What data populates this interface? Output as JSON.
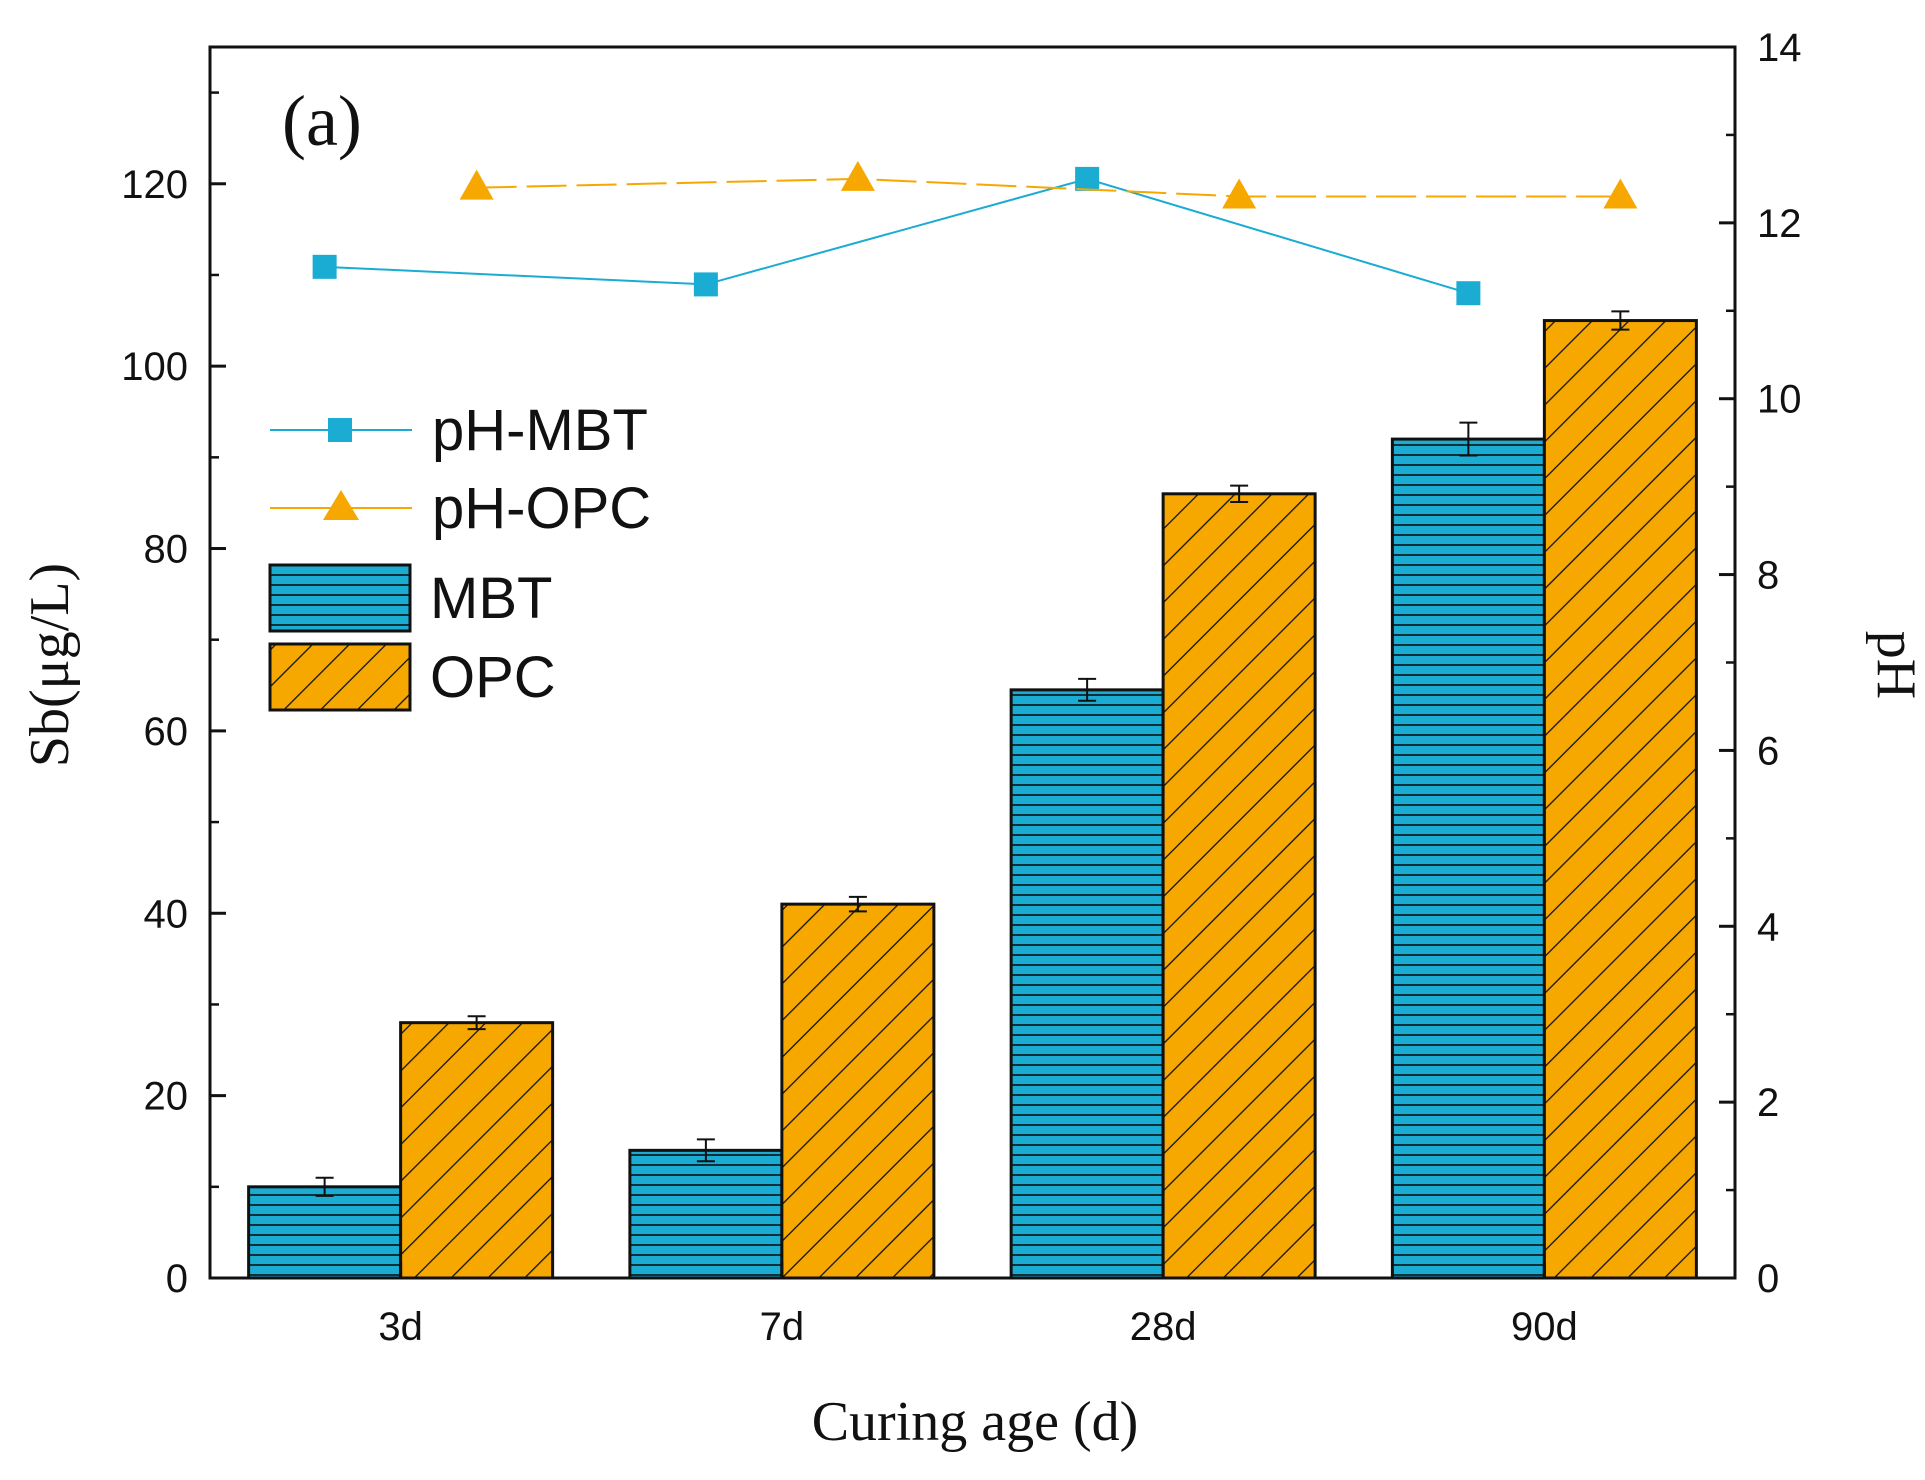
{
  "colors": {
    "mbt": "#1AACD2",
    "opc": "#F7A800",
    "axis": "#111111"
  },
  "chart_data": {
    "type": "bar",
    "panel_label": "(a)",
    "categories": [
      "3d",
      "7d",
      "28d",
      "90d"
    ],
    "xlabel": "Curing age (d)",
    "ylabel": "Sb(μg/L)",
    "y2label": "pH",
    "ylim": [
      0,
      135
    ],
    "y2lim": [
      0,
      14
    ],
    "yticks": [
      "0",
      "20",
      "40",
      "60",
      "80",
      "100",
      "120"
    ],
    "y2ticks": [
      "0",
      "2",
      "4",
      "6",
      "8",
      "10",
      "12",
      "14"
    ],
    "bar_series": [
      {
        "name": "MBT",
        "pattern": "horizontal-lines",
        "values": [
          10,
          14,
          64.5,
          92
        ],
        "errors": [
          1.0,
          1.2,
          1.2,
          1.8
        ]
      },
      {
        "name": "OPC",
        "pattern": "diagonal-hatch",
        "values": [
          28,
          41,
          86,
          105
        ],
        "errors": [
          0.7,
          0.8,
          0.9,
          1.0
        ]
      }
    ],
    "line_series": [
      {
        "name": "pH-MBT",
        "axis": "right",
        "marker": "square",
        "values": [
          11.5,
          11.3,
          12.5,
          11.2
        ]
      },
      {
        "name": "pH-OPC",
        "axis": "right",
        "marker": "triangle",
        "values": [
          12.4,
          12.5,
          12.3,
          12.3
        ]
      }
    ]
  }
}
